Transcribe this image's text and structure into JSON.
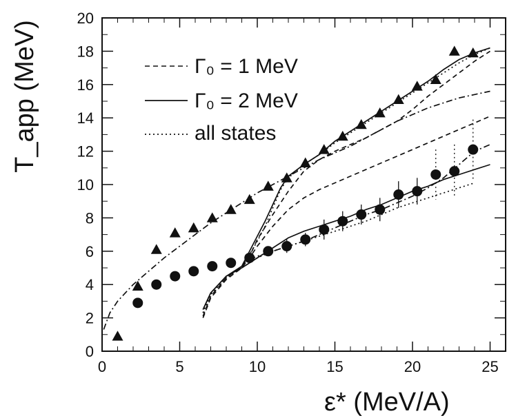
{
  "chart_data": {
    "type": "scatter",
    "title": "",
    "xlabel": "ε* (MeV/A)",
    "ylabel": "T_app (MeV)",
    "xlim": [
      0,
      26
    ],
    "ylim": [
      0,
      20
    ],
    "x_ticks": [
      0,
      5,
      10,
      15,
      20,
      25
    ],
    "x_tick_labels": [
      "0",
      "5",
      "10",
      "15",
      "20",
      "25"
    ],
    "y_ticks": [
      0,
      2,
      4,
      6,
      8,
      10,
      12,
      14,
      16,
      18,
      20
    ],
    "y_tick_labels": [
      "0",
      "2",
      "4",
      "6",
      "8",
      "10",
      "12",
      "14",
      "16",
      "18",
      "20"
    ],
    "grid": false,
    "legend": {
      "placement": "top-left",
      "entries": [
        {
          "label": "Γ₀ = 1 MeV",
          "style": "dashed"
        },
        {
          "label": "Γ₀ = 2 MeV",
          "style": "solid"
        },
        {
          "label": "all states",
          "style": "dotted"
        }
      ]
    },
    "series": [
      {
        "marker": "triangle",
        "x": [
          1.0,
          2.3,
          3.5,
          4.7,
          5.9,
          7.1,
          8.3,
          9.5,
          10.7,
          11.9,
          13.1,
          14.3,
          15.5,
          16.7,
          17.9,
          19.1,
          20.3,
          21.5,
          22.7,
          23.9
        ],
        "y": [
          0.9,
          3.9,
          6.1,
          7.1,
          7.4,
          8.0,
          8.5,
          9.1,
          9.9,
          10.4,
          11.3,
          12.1,
          12.9,
          13.6,
          14.3,
          15.1,
          15.9,
          16.3,
          18.0,
          17.9
        ],
        "errors": []
      },
      {
        "marker": "circle",
        "x": [
          2.3,
          3.5,
          4.7,
          5.9,
          7.1,
          8.3,
          9.5,
          10.7,
          11.9,
          13.1,
          14.3,
          15.5,
          16.7,
          17.9,
          19.1,
          20.3,
          21.5,
          22.7,
          23.9
        ],
        "y": [
          2.9,
          4.0,
          4.5,
          4.8,
          5.1,
          5.3,
          5.6,
          6.0,
          6.3,
          6.7,
          7.3,
          7.8,
          8.2,
          8.5,
          9.4,
          9.6,
          10.6,
          10.8,
          12.1
        ],
        "errors": [
          0,
          0,
          0,
          0,
          0,
          0,
          0,
          0.3,
          0.4,
          0.4,
          0.6,
          0.6,
          0.6,
          0.7,
          0.8,
          0.8,
          1.5,
          1.6,
          1.8
        ]
      }
    ],
    "curves": [
      {
        "style": "dashdot",
        "x": [
          0.1,
          0.5,
          1,
          2,
          3,
          4,
          5,
          6,
          7,
          8,
          9,
          10,
          11,
          12,
          13,
          14,
          15,
          16,
          17,
          18,
          19,
          20,
          21,
          22,
          23,
          24,
          25
        ],
        "y": [
          1.3,
          2.3,
          3.0,
          4.0,
          4.8,
          5.6,
          6.3,
          7.0,
          7.7,
          8.3,
          8.9,
          9.5,
          10.0,
          10.5,
          11.0,
          11.5,
          11.9,
          12.3,
          12.8,
          13.3,
          13.8,
          14.2,
          14.6,
          14.9,
          15.2,
          15.4,
          15.6
        ]
      },
      {
        "style": "dashdot",
        "x": [
          9.5,
          10,
          11,
          12,
          13,
          14,
          15,
          16,
          17,
          18,
          19,
          20,
          21,
          22,
          23,
          24,
          25
        ],
        "y": [
          5.5,
          5.7,
          6.0,
          6.3,
          6.6,
          7.0,
          7.4,
          7.8,
          8.2,
          8.5,
          8.9,
          9.3,
          9.8,
          10.4,
          11.2,
          12.0,
          12.4
        ]
      },
      {
        "style": "dashed",
        "x": [
          6.5,
          7,
          8,
          9,
          9.5,
          10,
          11,
          12,
          13,
          14,
          15,
          16,
          17,
          18,
          19,
          20,
          21,
          22,
          23,
          24,
          25
        ],
        "y": [
          2.0,
          3.2,
          4.3,
          5.0,
          5.6,
          6.3,
          7.5,
          8.5,
          9.2,
          9.7,
          10.1,
          10.5,
          10.9,
          11.3,
          11.7,
          12.1,
          12.5,
          12.9,
          13.3,
          13.7,
          14.1
        ]
      },
      {
        "style": "dashed",
        "x": [
          6.5,
          7,
          8,
          9,
          9.5,
          10,
          11,
          12,
          13,
          14,
          15,
          16,
          17,
          18,
          19,
          20,
          21,
          22,
          23,
          24,
          25
        ],
        "y": [
          2.1,
          3.3,
          4.4,
          5.1,
          5.7,
          6.7,
          8.2,
          9.6,
          10.8,
          11.5,
          12.0,
          12.4,
          12.8,
          13.3,
          13.8,
          14.5,
          15.3,
          16.0,
          16.7,
          17.4,
          18.0
        ]
      },
      {
        "style": "solid",
        "x": [
          6.5,
          7,
          8,
          9,
          10,
          11,
          12,
          13,
          14,
          15,
          16,
          17,
          18,
          19,
          20,
          21,
          22,
          23,
          24,
          25
        ],
        "y": [
          2.5,
          3.5,
          4.5,
          5.0,
          5.6,
          6.2,
          6.8,
          7.2,
          7.5,
          7.8,
          8.1,
          8.5,
          8.8,
          9.2,
          9.6,
          9.9,
          10.3,
          10.6,
          10.9,
          11.2
        ]
      },
      {
        "style": "solid",
        "x": [
          6.5,
          7,
          8,
          9,
          10,
          10.5,
          11,
          11.5,
          12,
          13,
          14,
          15,
          16,
          17,
          18,
          19,
          20,
          21,
          22,
          23,
          24,
          25
        ],
        "y": [
          2.5,
          3.5,
          4.5,
          5.1,
          6.9,
          7.8,
          8.8,
          9.8,
          10.5,
          11.2,
          11.8,
          12.6,
          13.2,
          13.8,
          14.4,
          15.0,
          15.6,
          16.2,
          16.9,
          17.5,
          17.9,
          18.2
        ]
      },
      {
        "style": "dotted",
        "x": [
          6.5,
          7,
          8,
          9,
          10,
          11,
          12,
          13,
          14,
          15,
          16,
          17,
          18,
          19,
          20,
          21,
          22,
          23,
          24
        ],
        "y": [
          2.3,
          3.4,
          4.4,
          5.0,
          5.6,
          6.0,
          6.3,
          6.6,
          6.9,
          7.2,
          7.5,
          7.8,
          8.2,
          8.6,
          8.9,
          9.2,
          9.5,
          9.8,
          10.1
        ]
      },
      {
        "style": "dotted",
        "x": [
          6.5,
          7,
          8,
          9,
          10,
          10.5,
          11,
          11.5,
          12,
          13,
          14,
          15,
          16,
          17,
          18,
          19,
          20,
          21,
          22,
          23,
          24,
          25
        ],
        "y": [
          2.3,
          3.4,
          4.4,
          5.0,
          6.6,
          7.5,
          8.6,
          9.7,
          10.4,
          11.2,
          11.8,
          12.5,
          13.1,
          13.7,
          14.3,
          14.9,
          15.5,
          16.1,
          16.7,
          17.3,
          17.8,
          18.2
        ]
      }
    ]
  }
}
